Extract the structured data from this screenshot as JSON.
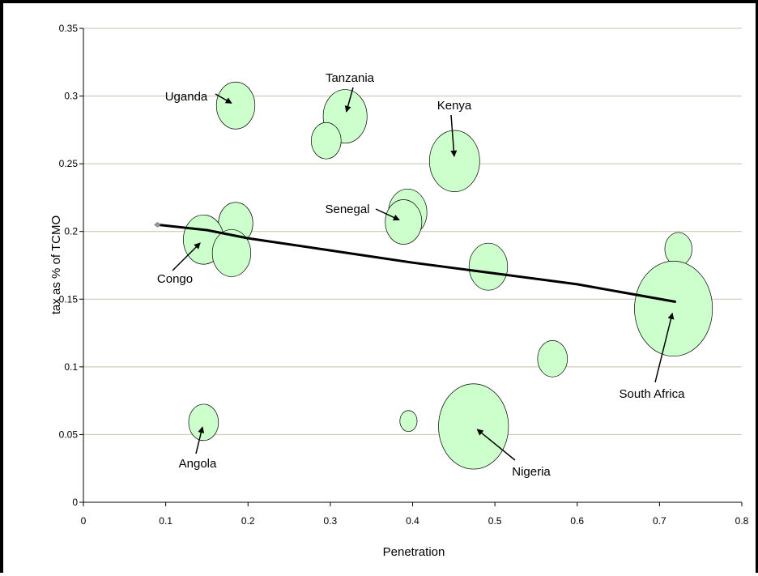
{
  "chart_data": {
    "type": "bubble",
    "xlabel": "Penetration",
    "ylabel": "tax as % of TCMO",
    "xlim": [
      0,
      0.8
    ],
    "ylim": [
      0,
      0.35
    ],
    "xticks": [
      "0",
      "0.1",
      "0.2",
      "0.3",
      "0.4",
      "0.5",
      "0.6",
      "0.7",
      "0.8"
    ],
    "yticks": [
      "0",
      "0.05",
      "0.1",
      "0.15",
      "0.2",
      "0.25",
      "0.3",
      "0.35"
    ],
    "grid": "horizontal",
    "bubble_color": "#ccffcc",
    "points": [
      {
        "x": 0.185,
        "y": 0.293,
        "size": 1.0
      },
      {
        "x": 0.318,
        "y": 0.285,
        "size": 1.3
      },
      {
        "x": 0.295,
        "y": 0.267,
        "size": 0.6
      },
      {
        "x": 0.451,
        "y": 0.252,
        "size": 1.7
      },
      {
        "x": 0.394,
        "y": 0.214,
        "size": 1.0
      },
      {
        "x": 0.389,
        "y": 0.207,
        "size": 0.9
      },
      {
        "x": 0.185,
        "y": 0.206,
        "size": 0.8
      },
      {
        "x": 0.146,
        "y": 0.194,
        "size": 1.1
      },
      {
        "x": 0.18,
        "y": 0.184,
        "size": 1.0
      },
      {
        "x": 0.723,
        "y": 0.187,
        "size": 0.5
      },
      {
        "x": 0.492,
        "y": 0.174,
        "size": 1.0
      },
      {
        "x": 0.717,
        "y": 0.143,
        "size": 4.1
      },
      {
        "x": 0.57,
        "y": 0.106,
        "size": 0.6
      },
      {
        "x": 0.146,
        "y": 0.059,
        "size": 0.6
      },
      {
        "x": 0.395,
        "y": 0.06,
        "size": 0.2
      },
      {
        "x": 0.474,
        "y": 0.056,
        "size": 3.3
      }
    ],
    "trendline": [
      [
        0.09,
        0.205
      ],
      [
        0.15,
        0.201
      ],
      [
        0.2,
        0.195
      ],
      [
        0.3,
        0.186
      ],
      [
        0.4,
        0.177
      ],
      [
        0.5,
        0.169
      ],
      [
        0.6,
        0.161
      ],
      [
        0.72,
        0.148
      ]
    ],
    "annotations": [
      {
        "label": "Uganda",
        "x": 0.185,
        "y": 0.293
      },
      {
        "label": "Tanzania",
        "x": 0.318,
        "y": 0.285
      },
      {
        "label": "Kenya",
        "x": 0.451,
        "y": 0.252
      },
      {
        "label": "Senegal",
        "x": 0.389,
        "y": 0.207
      },
      {
        "label": "Congo",
        "x": 0.146,
        "y": 0.194
      },
      {
        "label": "South Africa",
        "x": 0.717,
        "y": 0.143
      },
      {
        "label": "Angola",
        "x": 0.146,
        "y": 0.059
      },
      {
        "label": "Nigeria",
        "x": 0.474,
        "y": 0.056
      }
    ]
  }
}
